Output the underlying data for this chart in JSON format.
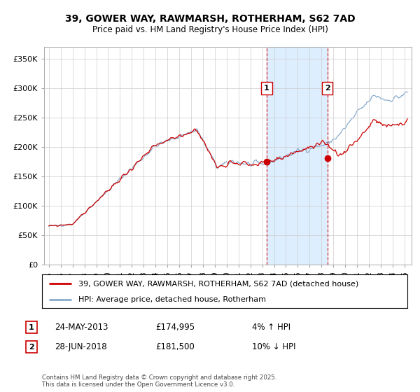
{
  "title_line1": "39, GOWER WAY, RAWMARSH, ROTHERHAM, S62 7AD",
  "title_line2": "Price paid vs. HM Land Registry's House Price Index (HPI)",
  "ylabel_ticks": [
    "£0",
    "£50K",
    "£100K",
    "£150K",
    "£200K",
    "£250K",
    "£300K",
    "£350K"
  ],
  "ytick_values": [
    0,
    50000,
    100000,
    150000,
    200000,
    250000,
    300000,
    350000
  ],
  "ylim": [
    0,
    370000
  ],
  "xlim_start": 1994.6,
  "xlim_end": 2025.6,
  "legend_line1": "39, GOWER WAY, RAWMARSH, ROTHERHAM, S62 7AD (detached house)",
  "legend_line2": "HPI: Average price, detached house, Rotherham",
  "sale1_label": "1",
  "sale1_date": "24-MAY-2013",
  "sale1_price": "£174,995",
  "sale1_hpi": "4% ↑ HPI",
  "sale1_x": 2013.38,
  "sale1_y": 174995,
  "sale2_label": "2",
  "sale2_date": "28-JUN-2018",
  "sale2_price": "£181,500",
  "sale2_hpi": "10% ↓ HPI",
  "sale2_x": 2018.49,
  "sale2_y": 181500,
  "copyright_text": "Contains HM Land Registry data © Crown copyright and database right 2025.\nThis data is licensed under the Open Government Licence v3.0.",
  "red_color": "#cc0000",
  "blue_color": "#88aacc",
  "shade_color": "#ddeeff",
  "background_color": "#ffffff",
  "grid_color": "#cccccc",
  "sale_marker_color": "#cc0000",
  "vline_color": "#cc0000"
}
